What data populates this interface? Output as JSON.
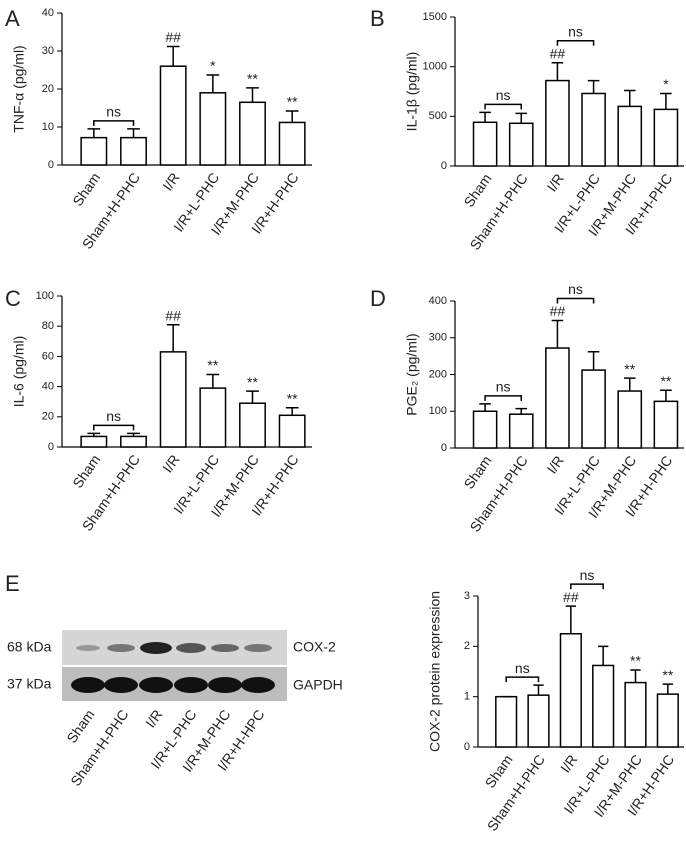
{
  "chart_data": [
    {
      "type": "bar",
      "panel": "A",
      "ylabel": "TNF-α  (pg/ml)",
      "categories": [
        "Sham",
        "Sham+H-PHC",
        "I/R",
        "I/R+L-PHC",
        "I/R+M-PHC",
        "I/R+H-PHC"
      ],
      "values": [
        7.2,
        7.2,
        26,
        19,
        16.5,
        11.2
      ],
      "errors": [
        2.3,
        2.3,
        5.2,
        4.7,
        3.8,
        3
      ],
      "annotations": [
        null,
        null,
        "##",
        "*",
        "**",
        "**"
      ],
      "brackets": [
        {
          "label": "ns",
          "between": [
            "Sham",
            "Sham+H-PHC"
          ]
        }
      ],
      "color": "#000000",
      "ylim": [
        0,
        40
      ],
      "yticks": [
        0,
        10,
        20,
        30,
        40
      ]
    },
    {
      "type": "bar",
      "panel": "B",
      "ylabel": "IL-1β  (pg/ml)",
      "categories": [
        "Sham",
        "Sham+H-PHC",
        "I/R",
        "I/R+L-PHC",
        "I/R+M-PHC",
        "I/R+H-PHC"
      ],
      "values": [
        440,
        430,
        860,
        730,
        600,
        570
      ],
      "errors": [
        100,
        100,
        180,
        130,
        160,
        160
      ],
      "annotations": [
        null,
        null,
        "##",
        null,
        null,
        "*"
      ],
      "brackets": [
        {
          "label": "ns",
          "between": [
            "Sham",
            "Sham+H-PHC"
          ]
        },
        {
          "label": "ns",
          "between": [
            "I/R",
            "I/R+L-PHC"
          ]
        }
      ],
      "color": "#000000",
      "ylim": [
        0,
        1500
      ],
      "yticks": [
        0,
        500,
        1000,
        1500
      ]
    },
    {
      "type": "bar",
      "panel": "C",
      "ylabel": "IL-6 (pg/ml)",
      "categories": [
        "Sham",
        "Sham+H-PHC",
        "I/R",
        "I/R+L-PHC",
        "I/R+M-PHC",
        "I/R+H-PHC"
      ],
      "values": [
        7,
        7,
        63,
        39,
        29,
        21
      ],
      "errors": [
        2,
        2,
        18,
        9,
        8,
        5
      ],
      "annotations": [
        null,
        null,
        "##",
        "**",
        "**",
        "**"
      ],
      "brackets": [
        {
          "label": "ns",
          "between": [
            "Sham",
            "Sham+H-PHC"
          ]
        }
      ],
      "color": "#000000",
      "ylim": [
        0,
        100
      ],
      "yticks": [
        0,
        20,
        40,
        60,
        80,
        100
      ]
    },
    {
      "type": "bar",
      "panel": "D",
      "ylabel": "PGE₂ (pg/ml)",
      "categories": [
        "Sham",
        "Sham+H-PHC",
        "I/R",
        "I/R+L-PHC",
        "I/R+M-PHC",
        "I/R+H-PHC"
      ],
      "values": [
        100,
        92,
        272,
        212,
        155,
        127
      ],
      "errors": [
        20,
        15,
        75,
        50,
        35,
        30
      ],
      "annotations": [
        null,
        null,
        "##",
        null,
        "**",
        "**"
      ],
      "brackets": [
        {
          "label": "ns",
          "between": [
            "Sham",
            "Sham+H-PHC"
          ]
        },
        {
          "label": "ns",
          "between": [
            "I/R",
            "I/R+L-PHC"
          ]
        }
      ],
      "color": "#000000",
      "ylim": [
        0,
        400
      ],
      "yticks": [
        0,
        100,
        200,
        300,
        400
      ]
    },
    {
      "type": "bar",
      "panel": "E",
      "ylabel": "COX-2 protein expression",
      "categories": [
        "Sham",
        "Sham+H-PHC",
        "I/R",
        "I/R+L-PHC",
        "I/R+M-PHC",
        "I/R+H-PHC"
      ],
      "values": [
        1.0,
        1.03,
        2.25,
        1.62,
        1.28,
        1.05
      ],
      "errors": [
        0,
        0.2,
        0.55,
        0.38,
        0.25,
        0.2
      ],
      "annotations": [
        null,
        null,
        "##",
        null,
        "**",
        "**"
      ],
      "brackets": [
        {
          "label": "ns",
          "between": [
            "Sham",
            "Sham+H-PHC"
          ]
        },
        {
          "label": "ns",
          "between": [
            "I/R",
            "I/R+L-PHC"
          ]
        }
      ],
      "color": "#000000",
      "ylim": [
        0,
        3
      ],
      "yticks": [
        0,
        1,
        2,
        3
      ]
    }
  ],
  "blot": {
    "markers": [
      "68 kDa",
      "37 kDa"
    ],
    "proteins": [
      "COX-2",
      "GAPDH"
    ],
    "lanes": [
      "Sham",
      "Sham+H-PHC",
      "I/R",
      "I/R+L-PHC",
      "I/R+M-PHC",
      "I/R+H-HPC"
    ]
  }
}
